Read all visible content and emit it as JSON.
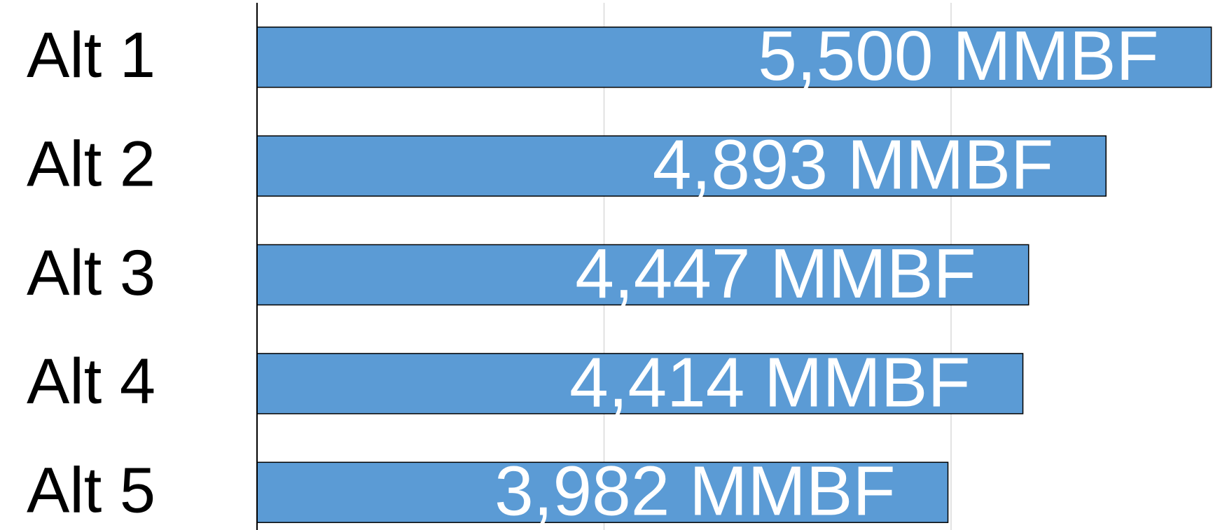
{
  "chart_data": {
    "type": "bar",
    "orientation": "horizontal",
    "categories": [
      "Alt 1",
      "Alt 2",
      "Alt 3",
      "Alt 4",
      "Alt 5"
    ],
    "values": [
      5500,
      4893,
      4447,
      4414,
      3982
    ],
    "value_labels": [
      "5,500  MMBF",
      "4,893 MMBF",
      "4,447 MMBF",
      "4,414 MMBF",
      "3,982 MMBF"
    ],
    "color": "#5b9bd5",
    "xlim": [
      0,
      5550
    ],
    "xticks": [
      0,
      2000,
      4000
    ],
    "grid": true
  }
}
